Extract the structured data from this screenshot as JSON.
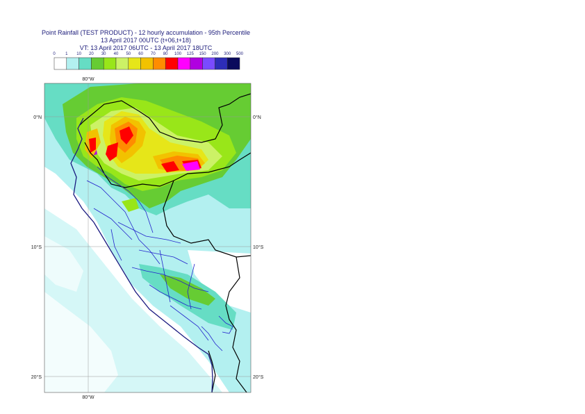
{
  "title": {
    "line1": "Point Rainfall (TEST PRODUCT) - 12 hourly accumulation - 95th Percentile",
    "line2": "13 April 2017 00UTC (t+06,t+18)",
    "line3": "VT: 13 April 2017 06UTC - 13 April 2017 18UTC"
  },
  "legend": {
    "thresholds": [
      "0",
      "1",
      "10",
      "20",
      "30",
      "40",
      "50",
      "60",
      "70",
      "80",
      "100",
      "125",
      "150",
      "200",
      "300",
      "500"
    ],
    "colors": [
      "#ffffff",
      "#b3f0f0",
      "#66ddc4",
      "#66cc33",
      "#99e619",
      "#ccf266",
      "#e6e619",
      "#f2c200",
      "#ff8c00",
      "#ff0000",
      "#ff00ff",
      "#b000e0",
      "#7a4bff",
      "#2d2db8",
      "#0a0a5c"
    ]
  },
  "axes": {
    "lon_top": "80°W",
    "lon_bottom": "80°W",
    "lat_left": [
      "0°N",
      "10°S",
      "20°S"
    ],
    "lat_right": [
      "0°N",
      "10°S",
      "20°S"
    ]
  }
}
